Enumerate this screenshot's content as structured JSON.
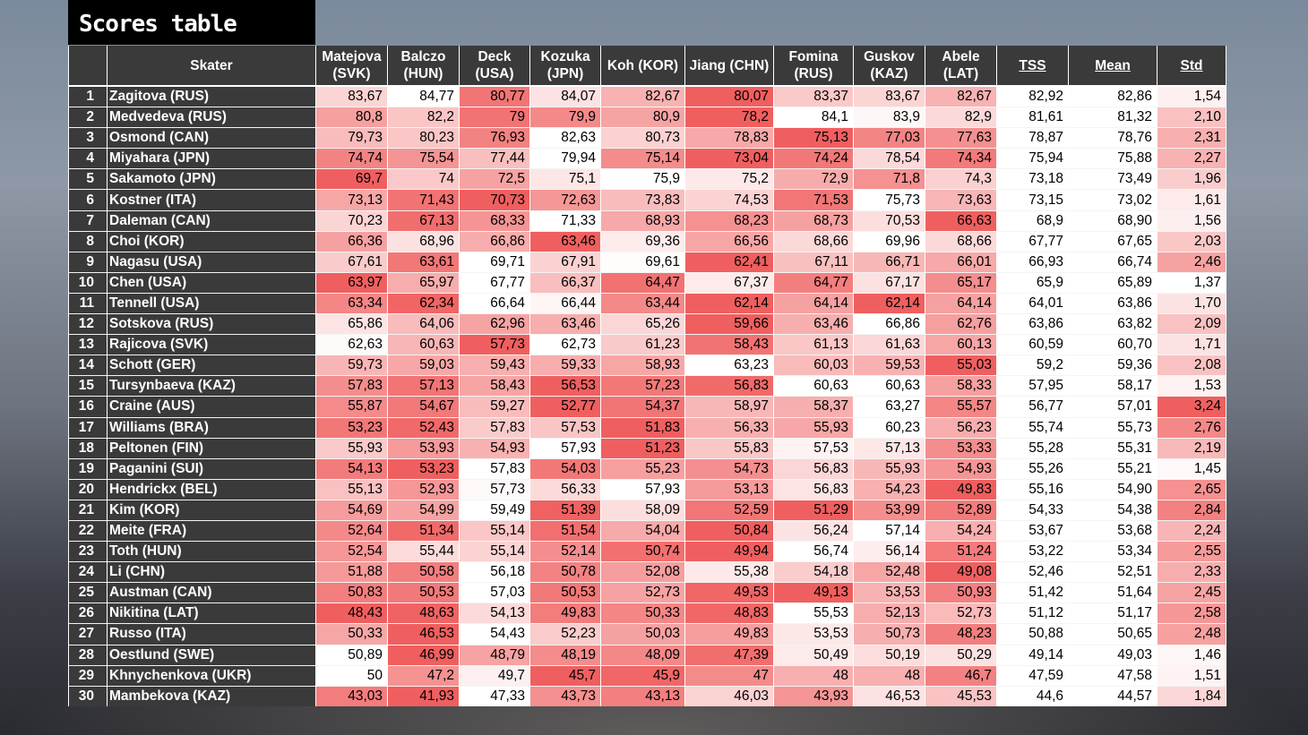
{
  "title": "Scores table",
  "headers": {
    "rank": "",
    "skater": "Skater",
    "judges": [
      "Matejova\n(SVK)",
      "Balczo\n(HUN)",
      "Deck\n(USA)",
      "Kozuka\n(JPN)",
      "Koh (KOR)",
      "Jiang (CHN)",
      "Fomina\n(RUS)",
      "Guskov\n(KAZ)",
      "Abele\n(LAT)"
    ],
    "tss": "TSS",
    "mean": "Mean",
    "std": "Std"
  },
  "colors": {
    "header_bg": "#3a3a3a",
    "heat_max": "#f06060",
    "heat_min": "#ffffff"
  },
  "rows": [
    {
      "rank": "1",
      "skater": "Zagitova (RUS)",
      "scores": [
        "83,67",
        "84,77",
        "80,77",
        "84,07",
        "82,67",
        "80,07",
        "83,37",
        "83,67",
        "82,67"
      ],
      "tss": "82,92",
      "mean": "82,86",
      "std": "1,54"
    },
    {
      "rank": "2",
      "skater": "Medvedeva (RUS)",
      "scores": [
        "80,8",
        "82,2",
        "79",
        "79,9",
        "80,9",
        "78,2",
        "84,1",
        "83,9",
        "82,9"
      ],
      "tss": "81,61",
      "mean": "81,32",
      "std": "2,10"
    },
    {
      "rank": "3",
      "skater": "Osmond (CAN)",
      "scores": [
        "79,73",
        "80,23",
        "76,93",
        "82,63",
        "80,73",
        "78,83",
        "75,13",
        "77,03",
        "77,63"
      ],
      "tss": "78,87",
      "mean": "78,76",
      "std": "2,31"
    },
    {
      "rank": "4",
      "skater": "Miyahara (JPN)",
      "scores": [
        "74,74",
        "75,54",
        "77,44",
        "79,94",
        "75,14",
        "73,04",
        "74,24",
        "78,54",
        "74,34"
      ],
      "tss": "75,94",
      "mean": "75,88",
      "std": "2,27"
    },
    {
      "rank": "5",
      "skater": "Sakamoto (JPN)",
      "scores": [
        "69,7",
        "74",
        "72,5",
        "75,1",
        "75,9",
        "75,2",
        "72,9",
        "71,8",
        "74,3"
      ],
      "tss": "73,18",
      "mean": "73,49",
      "std": "1,96"
    },
    {
      "rank": "6",
      "skater": "Kostner (ITA)",
      "scores": [
        "73,13",
        "71,43",
        "70,73",
        "72,63",
        "73,83",
        "74,53",
        "71,53",
        "75,73",
        "73,63"
      ],
      "tss": "73,15",
      "mean": "73,02",
      "std": "1,61"
    },
    {
      "rank": "7",
      "skater": "Daleman (CAN)",
      "scores": [
        "70,23",
        "67,13",
        "68,33",
        "71,33",
        "68,93",
        "68,23",
        "68,73",
        "70,53",
        "66,63"
      ],
      "tss": "68,9",
      "mean": "68,90",
      "std": "1,56"
    },
    {
      "rank": "8",
      "skater": "Choi (KOR)",
      "scores": [
        "66,36",
        "68,96",
        "66,86",
        "63,46",
        "69,36",
        "66,56",
        "68,66",
        "69,96",
        "68,66"
      ],
      "tss": "67,77",
      "mean": "67,65",
      "std": "2,03"
    },
    {
      "rank": "9",
      "skater": "Nagasu (USA)",
      "scores": [
        "67,61",
        "63,61",
        "69,71",
        "67,91",
        "69,61",
        "62,41",
        "67,11",
        "66,71",
        "66,01"
      ],
      "tss": "66,93",
      "mean": "66,74",
      "std": "2,46"
    },
    {
      "rank": "10",
      "skater": "Chen (USA)",
      "scores": [
        "63,97",
        "65,97",
        "67,77",
        "66,37",
        "64,47",
        "67,37",
        "64,77",
        "67,17",
        "65,17"
      ],
      "tss": "65,9",
      "mean": "65,89",
      "std": "1,37"
    },
    {
      "rank": "11",
      "skater": "Tennell (USA)",
      "scores": [
        "63,34",
        "62,34",
        "66,64",
        "66,44",
        "63,44",
        "62,14",
        "64,14",
        "62,14",
        "64,14"
      ],
      "tss": "64,01",
      "mean": "63,86",
      "std": "1,70"
    },
    {
      "rank": "12",
      "skater": "Sotskova (RUS)",
      "scores": [
        "65,86",
        "64,06",
        "62,96",
        "63,46",
        "65,26",
        "59,66",
        "63,46",
        "66,86",
        "62,76"
      ],
      "tss": "63,86",
      "mean": "63,82",
      "std": "2,09"
    },
    {
      "rank": "13",
      "skater": "Rajicova (SVK)",
      "scores": [
        "62,63",
        "60,63",
        "57,73",
        "62,73",
        "61,23",
        "58,43",
        "61,13",
        "61,63",
        "60,13"
      ],
      "tss": "60,59",
      "mean": "60,70",
      "std": "1,71"
    },
    {
      "rank": "14",
      "skater": "Schott (GER)",
      "scores": [
        "59,73",
        "59,03",
        "59,43",
        "59,33",
        "58,93",
        "63,23",
        "60,03",
        "59,53",
        "55,03"
      ],
      "tss": "59,2",
      "mean": "59,36",
      "std": "2,08"
    },
    {
      "rank": "15",
      "skater": "Tursynbaeva (KAZ)",
      "scores": [
        "57,83",
        "57,13",
        "58,43",
        "56,53",
        "57,23",
        "56,83",
        "60,63",
        "60,63",
        "58,33"
      ],
      "tss": "57,95",
      "mean": "58,17",
      "std": "1,53"
    },
    {
      "rank": "16",
      "skater": "Craine (AUS)",
      "scores": [
        "55,87",
        "54,67",
        "59,27",
        "52,77",
        "54,37",
        "58,97",
        "58,37",
        "63,27",
        "55,57"
      ],
      "tss": "56,77",
      "mean": "57,01",
      "std": "3,24"
    },
    {
      "rank": "17",
      "skater": "Williams (BRA)",
      "scores": [
        "53,23",
        "52,43",
        "57,83",
        "57,53",
        "51,83",
        "56,33",
        "55,93",
        "60,23",
        "56,23"
      ],
      "tss": "55,74",
      "mean": "55,73",
      "std": "2,76"
    },
    {
      "rank": "18",
      "skater": "Peltonen (FIN)",
      "scores": [
        "55,93",
        "53,93",
        "54,93",
        "57,93",
        "51,23",
        "55,83",
        "57,53",
        "57,13",
        "53,33"
      ],
      "tss": "55,28",
      "mean": "55,31",
      "std": "2,19"
    },
    {
      "rank": "19",
      "skater": "Paganini (SUI)",
      "scores": [
        "54,13",
        "53,23",
        "57,83",
        "54,03",
        "55,23",
        "54,73",
        "56,83",
        "55,93",
        "54,93"
      ],
      "tss": "55,26",
      "mean": "55,21",
      "std": "1,45"
    },
    {
      "rank": "20",
      "skater": "Hendrickx (BEL)",
      "scores": [
        "55,13",
        "52,93",
        "57,73",
        "56,33",
        "57,93",
        "53,13",
        "56,83",
        "54,23",
        "49,83"
      ],
      "tss": "55,16",
      "mean": "54,90",
      "std": "2,65"
    },
    {
      "rank": "21",
      "skater": "Kim (KOR)",
      "scores": [
        "54,69",
        "54,99",
        "59,49",
        "51,39",
        "58,09",
        "52,59",
        "51,29",
        "53,99",
        "52,89"
      ],
      "tss": "54,33",
      "mean": "54,38",
      "std": "2,84"
    },
    {
      "rank": "22",
      "skater": "Meite (FRA)",
      "scores": [
        "52,64",
        "51,34",
        "55,14",
        "51,54",
        "54,04",
        "50,84",
        "56,24",
        "57,14",
        "54,24"
      ],
      "tss": "53,67",
      "mean": "53,68",
      "std": "2,24"
    },
    {
      "rank": "23",
      "skater": "Toth (HUN)",
      "scores": [
        "52,54",
        "55,44",
        "55,14",
        "52,14",
        "50,74",
        "49,94",
        "56,74",
        "56,14",
        "51,24"
      ],
      "tss": "53,22",
      "mean": "53,34",
      "std": "2,55"
    },
    {
      "rank": "24",
      "skater": "Li (CHN)",
      "scores": [
        "51,88",
        "50,58",
        "56,18",
        "50,78",
        "52,08",
        "55,38",
        "54,18",
        "52,48",
        "49,08"
      ],
      "tss": "52,46",
      "mean": "52,51",
      "std": "2,33"
    },
    {
      "rank": "25",
      "skater": "Austman (CAN)",
      "scores": [
        "50,83",
        "50,53",
        "57,03",
        "50,53",
        "52,73",
        "49,53",
        "49,13",
        "53,53",
        "50,93"
      ],
      "tss": "51,42",
      "mean": "51,64",
      "std": "2,45"
    },
    {
      "rank": "26",
      "skater": "Nikitina (LAT)",
      "scores": [
        "48,43",
        "48,63",
        "54,13",
        "49,83",
        "50,33",
        "48,83",
        "55,53",
        "52,13",
        "52,73"
      ],
      "tss": "51,12",
      "mean": "51,17",
      "std": "2,58"
    },
    {
      "rank": "27",
      "skater": "Russo (ITA)",
      "scores": [
        "50,33",
        "46,53",
        "54,43",
        "52,23",
        "50,03",
        "49,83",
        "53,53",
        "50,73",
        "48,23"
      ],
      "tss": "50,88",
      "mean": "50,65",
      "std": "2,48"
    },
    {
      "rank": "28",
      "skater": "Oestlund (SWE)",
      "scores": [
        "50,89",
        "46,99",
        "48,79",
        "48,19",
        "48,09",
        "47,39",
        "50,49",
        "50,19",
        "50,29"
      ],
      "tss": "49,14",
      "mean": "49,03",
      "std": "1,46"
    },
    {
      "rank": "29",
      "skater": "Khnychenkova (UKR)",
      "scores": [
        "50",
        "47,2",
        "49,7",
        "45,7",
        "45,9",
        "47",
        "48",
        "48",
        "46,7"
      ],
      "tss": "47,59",
      "mean": "47,58",
      "std": "1,51"
    },
    {
      "rank": "30",
      "skater": "Mambekova (KAZ)",
      "scores": [
        "43,03",
        "41,93",
        "47,33",
        "43,73",
        "43,13",
        "46,03",
        "43,93",
        "46,53",
        "45,53"
      ],
      "tss": "44,6",
      "mean": "44,57",
      "std": "1,84"
    }
  ]
}
